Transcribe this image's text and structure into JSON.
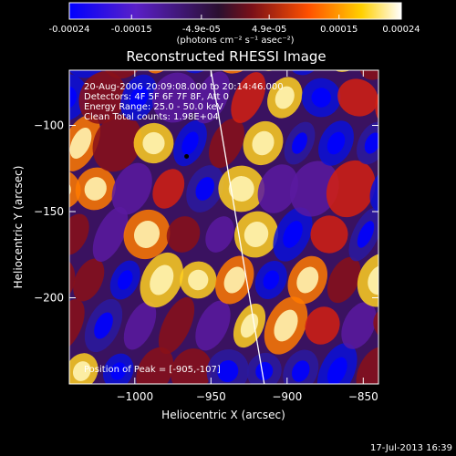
{
  "colorbar": {
    "tick_labels": [
      "-0.00024",
      "-0.00015",
      "-4.9e-05",
      "4.9e-05",
      "0.00015",
      "0.00024"
    ],
    "tick_values": [
      -0.00024,
      -0.00015,
      -4.9e-05,
      4.9e-05,
      0.00015,
      0.00024
    ],
    "range": [
      -0.00024,
      0.00024
    ],
    "unit_label": "(photons cm⁻² s⁻¹ asec⁻²)"
  },
  "annotations": {
    "time_range": "20-Aug-2006 20:09:08.000 to 20:14:46.000",
    "detectors": "Detectors: 4F 5F 6F 7F 8F, Att 0",
    "energy_range": "Energy Range: 25.0 - 50.0 keV",
    "algorithm": "Clean    Total counts: 1.98E+04",
    "peak": "Position of Peak = [-905,-107]"
  },
  "footer_date": "17-Jul-2013 16:39",
  "chart_data": {
    "type": "heatmap",
    "title": "Reconstructed RHESSI Image",
    "xlabel": "Heliocentric X (arcsec)",
    "ylabel": "Heliocentric Y (arcsec)",
    "xlim": [
      -1043,
      -840
    ],
    "ylim": [
      -250,
      -68
    ],
    "x_ticks": [
      -1000,
      -950,
      -900,
      -850
    ],
    "x_tick_labels": [
      "−1000",
      "−950",
      "−900",
      "−850"
    ],
    "y_ticks": [
      -100,
      -150,
      -200
    ],
    "y_tick_labels": [
      "−100",
      "−150",
      "−200"
    ],
    "colormap": "blue-purple-red-yellow-white",
    "colormap_stops": [
      "#0000ff",
      "#4b1ad0",
      "#8a2aa0",
      "#d42020",
      "#ff6a00",
      "#ffd000",
      "#ffffff"
    ],
    "limb_line": {
      "x": [
        -950,
        -915
      ],
      "y": [
        -68,
        -250
      ],
      "color": "#ffffff"
    },
    "marker": {
      "x": -966,
      "y": -118
    }
  }
}
